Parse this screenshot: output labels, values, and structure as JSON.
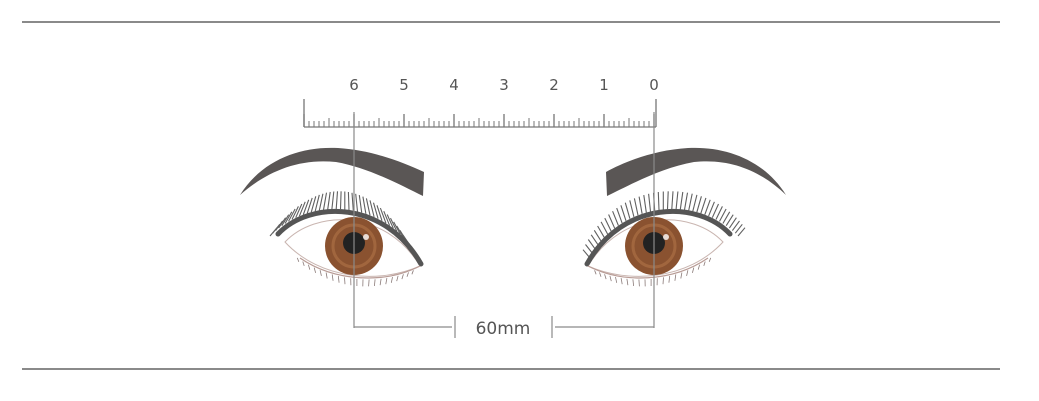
{
  "ruler": {
    "labels": [
      "6",
      "5",
      "4",
      "3",
      "2",
      "1",
      "0"
    ],
    "minor_divisions_per_unit": 10
  },
  "measurement": {
    "label": "60mm",
    "value_mm": 60
  },
  "eyes": {
    "iris_color": "#8a5230",
    "brow_color": "#5a5655",
    "lash_color": "#606060"
  },
  "colors": {
    "divider": "#444444",
    "guide_line": "#8a8a8a",
    "ruler": "#777777",
    "text": "#555555"
  }
}
